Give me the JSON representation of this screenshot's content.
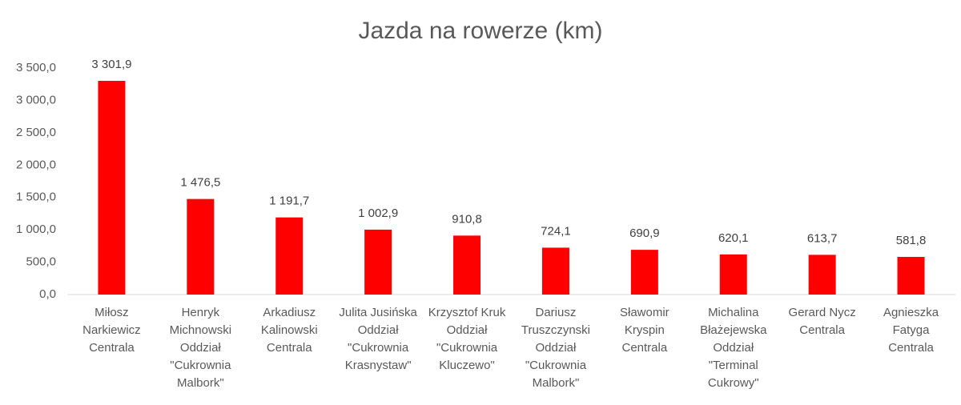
{
  "chart_data": {
    "type": "bar",
    "title": "Jazda na rowerze (km)",
    "categories": [
      "Miłosz Narkiewicz Centrala",
      "Henryk Michnowski Oddział \"Cukrownia Malbork\"",
      "Arkadiusz Kalinowski Centrala",
      "Julita Jusińska Oddział \"Cukrownia Krasnystaw\"",
      "Krzysztof Kruk Oddział \"Cukrownia Kluczewo\"",
      "Dariusz Truszczynski Oddział \"Cukrownia Malbork\"",
      "Sławomir Kryspin Centrala",
      "Michalina Błażejewska Oddział \"Terminal Cukrowy\"",
      "Gerard Nycz Centrala",
      "Agnieszka Fatyga Centrala"
    ],
    "values": [
      3301.9,
      1476.5,
      1191.7,
      1002.9,
      910.8,
      724.1,
      690.9,
      620.1,
      613.7,
      581.8
    ],
    "value_labels": [
      "3 301,9",
      "1 476,5",
      "1 191,7",
      "1 002,9",
      "910,8",
      "724,1",
      "690,9",
      "620,1",
      "613,7",
      "581,8"
    ],
    "color": "#ff0000",
    "ylim": [
      0,
      3500
    ],
    "yticks": [
      {
        "value": 0,
        "label": "0,0"
      },
      {
        "value": 500,
        "label": "500,0"
      },
      {
        "value": 1000,
        "label": "1 000,0"
      },
      {
        "value": 1500,
        "label": "1 500,0"
      },
      {
        "value": 2000,
        "label": "2 000,0"
      },
      {
        "value": 2500,
        "label": "2 500,0"
      },
      {
        "value": 3000,
        "label": "3 000,0"
      },
      {
        "value": 3500,
        "label": "3 500,0"
      }
    ],
    "grid": false
  }
}
